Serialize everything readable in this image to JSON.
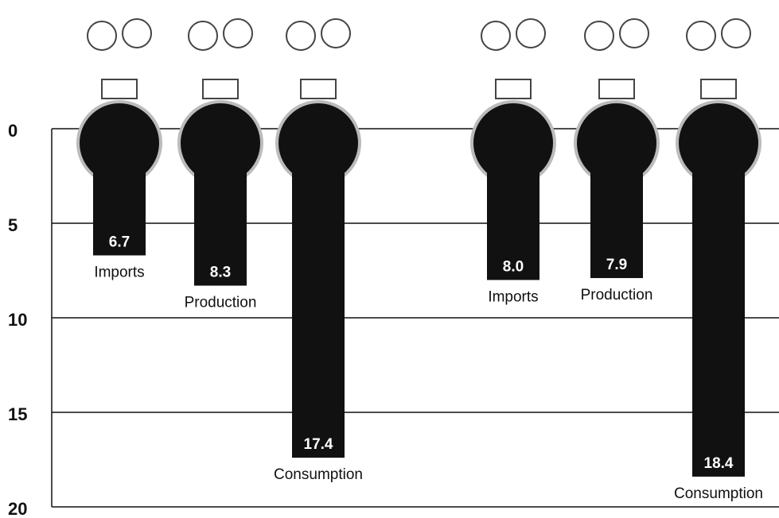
{
  "chart_data": {
    "type": "bar",
    "categories": [
      "Imports",
      "Production",
      "Consumption",
      "Imports",
      "Production",
      "Consumption"
    ],
    "values": [
      6.7,
      8.3,
      17.4,
      8.0,
      7.9,
      18.4
    ],
    "value_labels": [
      "6.7",
      "8.3",
      "17.4",
      "8.0",
      "7.9",
      "18.4"
    ],
    "color": "#111111",
    "ylim": [
      0,
      20
    ],
    "yticks": [
      0,
      5,
      10,
      15,
      20
    ],
    "y_inverted": true,
    "grid": true
  }
}
